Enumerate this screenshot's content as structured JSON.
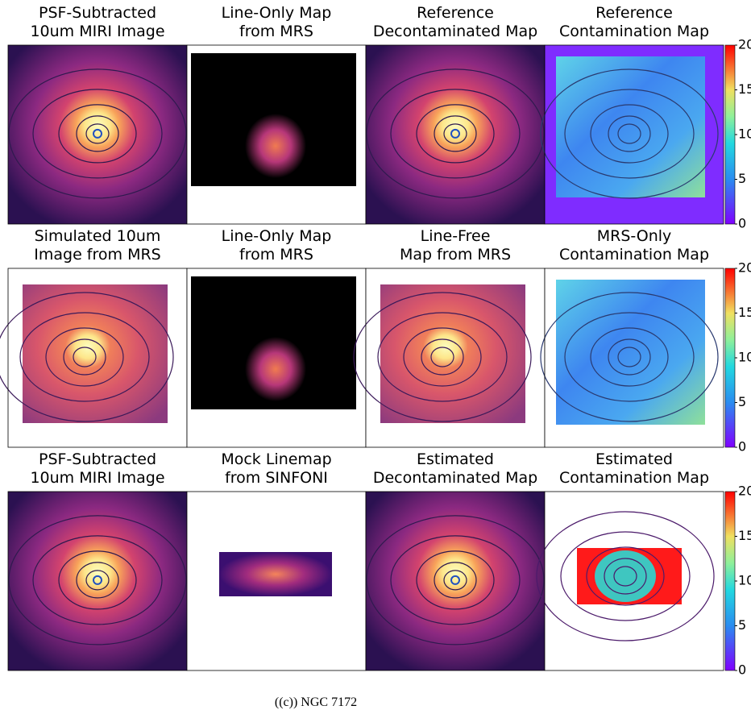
{
  "panels": [
    {
      "title": [
        "PSF-Subtracted",
        "10um MIRI Image"
      ]
    },
    {
      "title": [
        "Line-Only Map",
        "from MRS"
      ]
    },
    {
      "title": [
        "Reference",
        "Decontaminated Map"
      ]
    },
    {
      "title": [
        "Reference",
        "Contamination Map"
      ]
    },
    {
      "title": [
        "Simulated 10um",
        "Image from MRS"
      ]
    },
    {
      "title": [
        "Line-Only Map",
        "from MRS"
      ]
    },
    {
      "title": [
        "Line-Free",
        "Map from MRS"
      ]
    },
    {
      "title": [
        "MRS-Only",
        "Contamination Map"
      ]
    },
    {
      "title": [
        "PSF-Subtracted",
        "10um MIRI Image"
      ]
    },
    {
      "title": [
        "Mock Linemap",
        "from SINFONI"
      ]
    },
    {
      "title": [
        "Estimated",
        "Decontaminated Map"
      ]
    },
    {
      "title": [
        "Estimated",
        "Contamination Map"
      ]
    }
  ],
  "colorbars": [
    {
      "lim": [
        0,
        20
      ],
      "ticks": [
        0,
        5,
        10,
        15,
        20
      ]
    },
    {
      "lim": [
        0,
        20
      ],
      "ticks": [
        0,
        5,
        10,
        15,
        20
      ]
    },
    {
      "lim": [
        0,
        20
      ],
      "ticks": [
        0,
        5,
        10,
        15,
        20
      ]
    }
  ],
  "caption": "((c)) NGC 7172"
}
